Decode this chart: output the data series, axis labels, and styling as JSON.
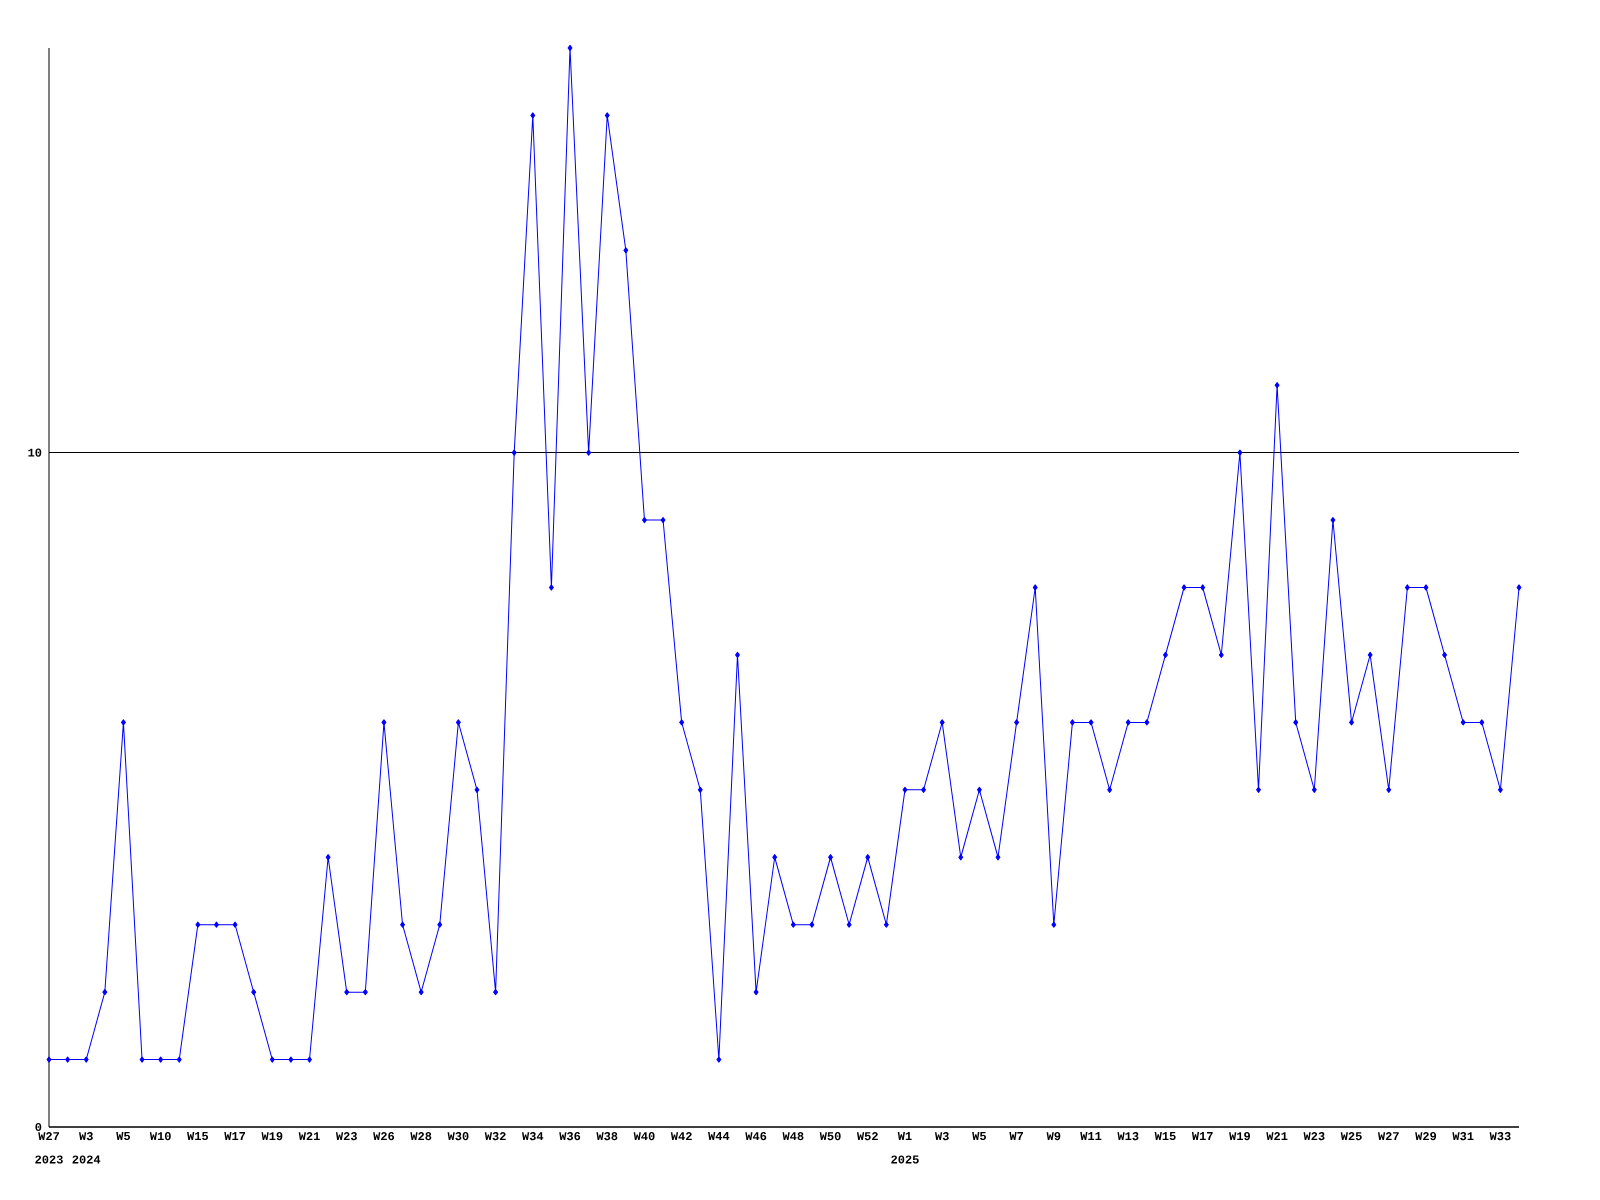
{
  "chart_data": {
    "type": "line",
    "categories": [
      "W27",
      null,
      "W3",
      null,
      "W5",
      null,
      "W10",
      null,
      "W15",
      null,
      "W17",
      null,
      "W19",
      null,
      "W21",
      null,
      "W23",
      null,
      "W26",
      null,
      "W28",
      null,
      "W30",
      null,
      "W32",
      null,
      "W34",
      null,
      "W36",
      null,
      "W38",
      null,
      "W40",
      null,
      "W42",
      null,
      "W44",
      null,
      "W46",
      null,
      "W48",
      null,
      "W50",
      null,
      "W52",
      null,
      "W1",
      null,
      "W3",
      null,
      "W5",
      null,
      "W7",
      null,
      "W9",
      null,
      "W11",
      null,
      "W13",
      null,
      "W15",
      null,
      "W17",
      null,
      "W19",
      null,
      "W21",
      null,
      "W23",
      null,
      "W25",
      null,
      "W27",
      null,
      "W29",
      null,
      "W31",
      null,
      "W33",
      null
    ],
    "series": [
      {
        "color": "#0000ff",
        "values": [
          1,
          1,
          1,
          2,
          6,
          1,
          1,
          1,
          3,
          3,
          3,
          2,
          1,
          1,
          1,
          4,
          2,
          2,
          6,
          3,
          2,
          3,
          6,
          5,
          2,
          10,
          15,
          8,
          16,
          10,
          15,
          13,
          9,
          9,
          6,
          5,
          1,
          7,
          2,
          4,
          3,
          3,
          4,
          3,
          4,
          3,
          5,
          5,
          6,
          4,
          5,
          4,
          6,
          8,
          3,
          6,
          6,
          5,
          6,
          6,
          7,
          8,
          8,
          7,
          10,
          5,
          11,
          6,
          5,
          9,
          6,
          7,
          5,
          8,
          8,
          7,
          6,
          6,
          5,
          8
        ]
      }
    ],
    "annotations": [
      "2023",
      "2024",
      "2025"
    ],
    "ylim": [
      0,
      16
    ],
    "yticks": [
      0,
      10
    ],
    "grid": "y",
    "marker": "diamond",
    "line_style": "solid"
  }
}
